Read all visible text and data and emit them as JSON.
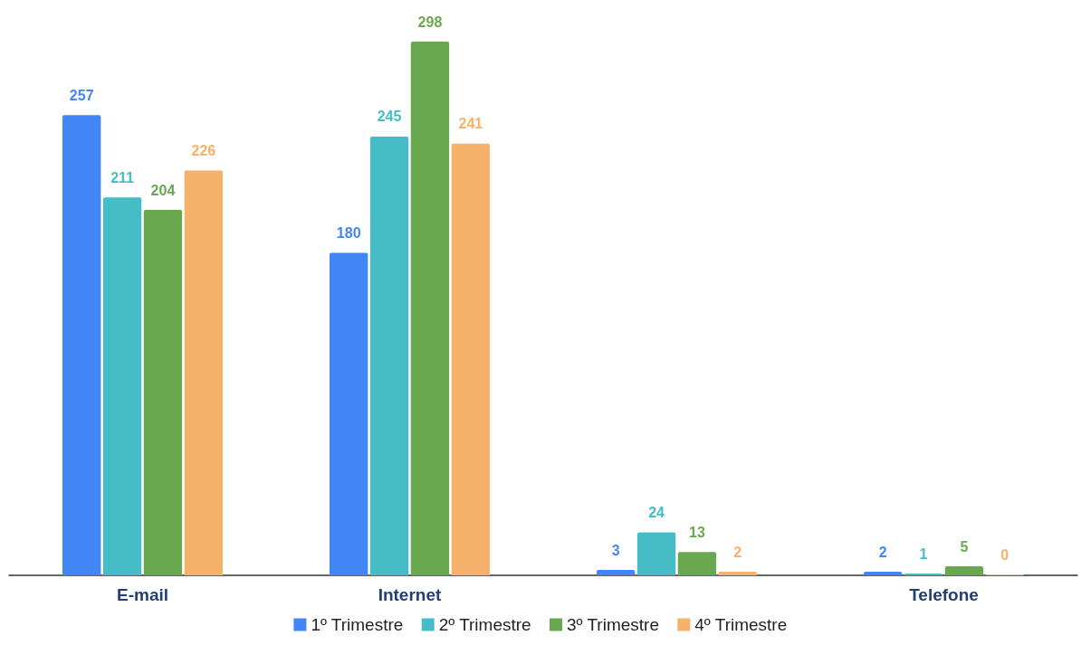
{
  "chart_data": {
    "type": "bar",
    "categories": [
      "E-mail",
      "Internet",
      null,
      "Telefone"
    ],
    "series": [
      {
        "name": "1º Trimestre",
        "color": "#4285f4",
        "values": [
          257,
          180,
          3,
          2
        ]
      },
      {
        "name": "2º Trimestre",
        "color": "#46bdc6",
        "values": [
          211,
          245,
          24,
          1
        ]
      },
      {
        "name": "3º Trimestre",
        "color": "#6aa84f",
        "values": [
          204,
          298,
          13,
          5
        ]
      },
      {
        "name": "4º Trimestre",
        "color": "#f6b26b",
        "values": [
          226,
          241,
          2,
          0
        ]
      }
    ],
    "data_labels": true,
    "legend": "bottom"
  }
}
